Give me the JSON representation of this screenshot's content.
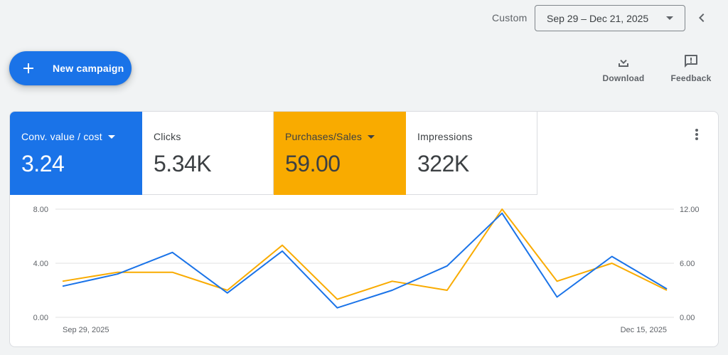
{
  "header": {
    "date_label": "Custom",
    "date_range": "Sep 29 – Dec 21, 2025"
  },
  "icons": {
    "back": "chevron-left-icon",
    "plus": "plus-icon",
    "download": "download-icon",
    "feedback": "feedback-icon",
    "more": "more-vert-icon",
    "dropdown": "arrow-drop-down-icon"
  },
  "actions": {
    "new_campaign": "New campaign",
    "download": "Download",
    "feedback": "Feedback"
  },
  "metrics": [
    {
      "label": "Conv. value / cost",
      "value": "3.24",
      "color": "#1a73e8",
      "selected": true,
      "has_dropdown": true
    },
    {
      "label": "Clicks",
      "value": "5.34K",
      "selected": false,
      "has_dropdown": false
    },
    {
      "label": "Purchases/Sales",
      "value": "59.00",
      "color": "#f9ab00",
      "selected": true,
      "has_dropdown": true
    },
    {
      "label": "Impressions",
      "value": "322K",
      "selected": false,
      "has_dropdown": false
    }
  ],
  "chart_data": {
    "type": "line",
    "x_start_label": "Sep 29, 2025",
    "x_end_label": "Dec 15, 2025",
    "left_axis": {
      "ticks": [
        "0.00",
        "4.00",
        "8.00"
      ],
      "ylim": [
        0,
        8
      ]
    },
    "right_axis": {
      "ticks": [
        "0.00",
        "6.00",
        "12.00"
      ],
      "ylim": [
        0,
        12
      ]
    },
    "grid": true,
    "series": [
      {
        "name": "Conv. value / cost",
        "axis": "left",
        "color": "#1a73e8",
        "values": [
          2.3,
          3.2,
          4.8,
          1.8,
          4.9,
          0.7,
          2.0,
          3.8,
          7.7,
          1.5,
          4.5,
          2.1
        ]
      },
      {
        "name": "Purchases/Sales",
        "axis": "right",
        "color": "#f9ab00",
        "values": [
          4.0,
          5.0,
          5.0,
          3.0,
          8.0,
          2.0,
          4.0,
          3.0,
          12.0,
          4.0,
          6.0,
          3.0
        ]
      }
    ]
  }
}
